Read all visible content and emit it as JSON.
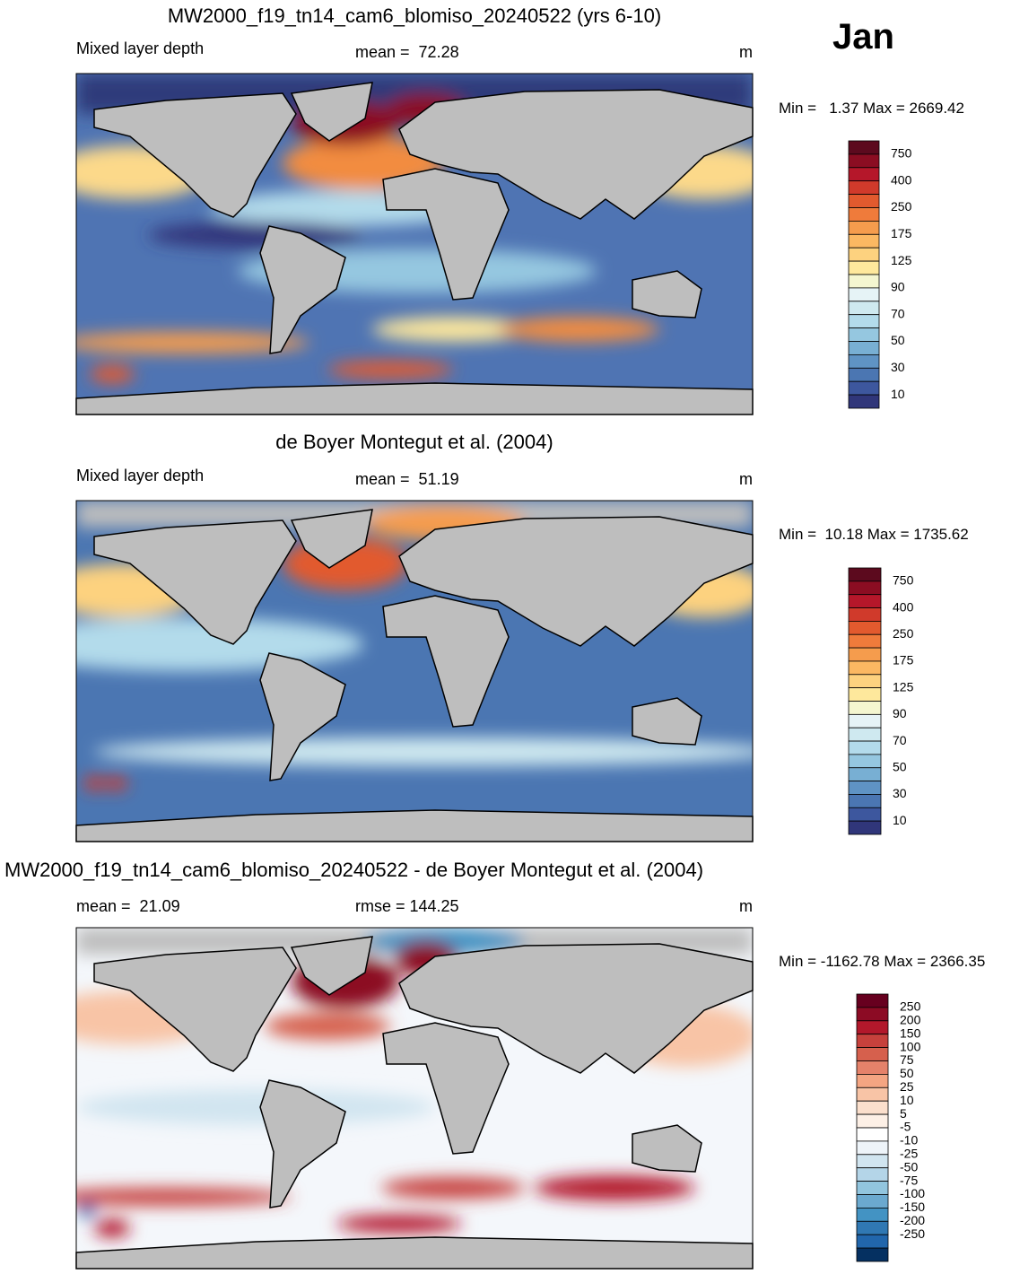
{
  "header": {
    "month": "Jan"
  },
  "panels": [
    {
      "title": "MW2000_f19_tn14_cam6_blomiso_20240522 (yrs 6-10)",
      "left": "Mixed layer depth",
      "center": "mean =  72.28",
      "units": "m",
      "range": "Min =   1.37 Max = 2669.42",
      "colorbar": {
        "labels": [
          750,
          400,
          250,
          175,
          125,
          90,
          70,
          50,
          30,
          10
        ],
        "colors": [
          "#5c0a1e",
          "#8b0d22",
          "#b5172a",
          "#d03a2b",
          "#e25a2e",
          "#ef7b3b",
          "#f59c4d",
          "#fbb862",
          "#fdd27f",
          "#fee89c",
          "#f4f6d0",
          "#e6f3f6",
          "#cfe9f0",
          "#b3dbeb",
          "#95c7e0",
          "#78afd3",
          "#5f93c4",
          "#4b76b2",
          "#3d579e",
          "#30367a"
        ]
      }
    },
    {
      "title": "de Boyer Montegut et al. (2004)",
      "left": "Mixed layer depth",
      "center": "mean =  51.19",
      "units": "m",
      "range": "Min =  10.18 Max = 1735.62",
      "colorbar": {
        "labels": [
          750,
          400,
          250,
          175,
          125,
          90,
          70,
          50,
          30,
          10
        ],
        "colors": [
          "#5c0a1e",
          "#8b0d22",
          "#b5172a",
          "#d03a2b",
          "#e25a2e",
          "#ef7b3b",
          "#f59c4d",
          "#fbb862",
          "#fdd27f",
          "#fee89c",
          "#f4f6d0",
          "#e6f3f6",
          "#cfe9f0",
          "#b3dbeb",
          "#95c7e0",
          "#78afd3",
          "#5f93c4",
          "#4b76b2",
          "#3d579e",
          "#30367a"
        ]
      }
    },
    {
      "title": "MW2000_f19_tn14_cam6_blomiso_20240522 - de Boyer Montegut et al. (2004)",
      "left": "mean =  21.09",
      "center": "rmse = 144.25",
      "units": "m",
      "range": "Min = -1162.78 Max = 2366.35",
      "colorbar": {
        "labels": [
          250,
          200,
          150,
          100,
          75,
          50,
          25,
          10,
          5,
          -5,
          -10,
          -25,
          -50,
          -75,
          -100,
          -150,
          -200,
          -250
        ],
        "colors": [
          "#67001f",
          "#8c0b24",
          "#b2182b",
          "#c6413c",
          "#d6604d",
          "#e5826a",
          "#f4a582",
          "#f8c4a6",
          "#fbdfcc",
          "#fdf0e6",
          "#ffffff",
          "#eef4f9",
          "#d1e5f0",
          "#b4d5e8",
          "#92c5de",
          "#6ba9cf",
          "#4393c3",
          "#3078b3",
          "#2166ac",
          "#053061"
        ]
      }
    }
  ]
}
